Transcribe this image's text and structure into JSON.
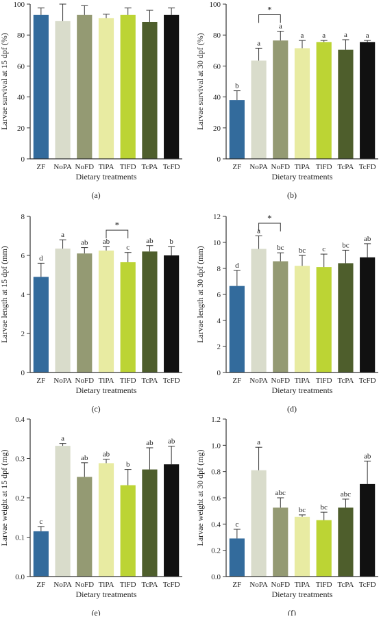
{
  "colors": {
    "ZF": "#336b9c",
    "NoPA": "#d9dccb",
    "NoFD": "#949a73",
    "TlPA": "#e8eba2",
    "TlFD": "#bcd434",
    "TcPA": "#4e5e2c",
    "TcFD": "#111111",
    "axis": "#333333"
  },
  "chart_data": [
    {
      "type": "bar",
      "panel_label": "(a)",
      "categories": [
        "ZF",
        "NoPA",
        "NoFD",
        "TlPA",
        "TlFD",
        "TcPA",
        "TcFD"
      ],
      "values": [
        93,
        89,
        93,
        91,
        93,
        88.5,
        93
      ],
      "errors": [
        4.5,
        11,
        6,
        2.5,
        4.5,
        7.5,
        4.5
      ],
      "letters": [
        "",
        "",
        "",
        "",
        "",
        "",
        ""
      ],
      "xlabel": "Dietary treatments",
      "ylabel": "Larvae survival at 15 dpf (%)",
      "ylim": [
        0,
        100
      ],
      "yticks": [
        "0",
        "20",
        "40",
        "60",
        "80",
        "100"
      ],
      "significance": null
    },
    {
      "type": "bar",
      "panel_label": "(b)",
      "categories": [
        "ZF",
        "NoPA",
        "NoFD",
        "TlPA",
        "TlFD",
        "TcPA",
        "TcFD"
      ],
      "values": [
        38,
        63.5,
        76.5,
        71.5,
        75.5,
        70.5,
        75.5
      ],
      "errors": [
        6,
        8,
        6,
        5,
        1,
        6.5,
        1
      ],
      "letters": [
        "b",
        "a",
        "a",
        "a",
        "a",
        "a",
        "a"
      ],
      "xlabel": "Dietary treatments",
      "ylabel": "Larvae survival at 30 dpf (%)",
      "ylim": [
        0,
        100
      ],
      "yticks": [
        "0",
        "20",
        "40",
        "60",
        "80",
        "100"
      ],
      "significance": {
        "from": 1,
        "to": 2,
        "label": "*"
      }
    },
    {
      "type": "bar",
      "panel_label": "(c)",
      "categories": [
        "ZF",
        "NoPA",
        "NoFD",
        "TlPA",
        "TlFD",
        "TcPA",
        "TcFD"
      ],
      "values": [
        4.9,
        6.35,
        6.1,
        6.25,
        5.65,
        6.2,
        6.0
      ],
      "errors": [
        0.7,
        0.45,
        0.3,
        0.2,
        0.5,
        0.3,
        0.45
      ],
      "letters": [
        "d",
        "a",
        "ab",
        "ab",
        "c",
        "ab",
        "b"
      ],
      "xlabel": "Dietary treatments",
      "ylabel": "Larvae length at 15 dpf (mm)",
      "ylim": [
        0,
        8
      ],
      "yticks": [
        "0",
        "2",
        "4",
        "6",
        "8"
      ],
      "significance": {
        "from": 3,
        "to": 4,
        "label": "*"
      }
    },
    {
      "type": "bar",
      "panel_label": "(d)",
      "categories": [
        "ZF",
        "NoPA",
        "NoFD",
        "TlPA",
        "TlFD",
        "TcPA",
        "TcFD"
      ],
      "values": [
        6.65,
        9.5,
        8.55,
        8.2,
        8.1,
        8.4,
        8.85
      ],
      "errors": [
        1.2,
        1.0,
        0.65,
        0.8,
        1.0,
        1.0,
        1.05
      ],
      "letters": [
        "d",
        "a",
        "bc",
        "bc",
        "c",
        "bc",
        "ab"
      ],
      "xlabel": "Dietary treatments",
      "ylabel": "Larvae length at 30 dpf (mm)",
      "ylim": [
        0,
        12
      ],
      "yticks": [
        "0",
        "2",
        "4",
        "6",
        "8",
        "10",
        "12"
      ],
      "significance": {
        "from": 1,
        "to": 2,
        "label": "*"
      }
    },
    {
      "type": "bar",
      "panel_label": "(e)",
      "categories": [
        "ZF",
        "NoPA",
        "NoFD",
        "TlPA",
        "TlFD",
        "TcPA",
        "TcFD"
      ],
      "values": [
        0.115,
        0.332,
        0.253,
        0.288,
        0.232,
        0.272,
        0.285
      ],
      "errors": [
        0.012,
        0.006,
        0.036,
        0.01,
        0.04,
        0.055,
        0.046
      ],
      "letters": [
        "c",
        "a",
        "ab",
        "ab",
        "b",
        "ab",
        "ab"
      ],
      "xlabel": "Dietary treatments",
      "ylabel": "Larvae weight at 15 dpf (mg)",
      "ylim": [
        0,
        0.4
      ],
      "yticks": [
        "0.0",
        "0.1",
        "0.2",
        "0.3",
        "0.4"
      ],
      "significance": null
    },
    {
      "type": "bar",
      "panel_label": "(f)",
      "categories": [
        "ZF",
        "NoPA",
        "NoFD",
        "TlPA",
        "TlFD",
        "TcPA",
        "TcFD"
      ],
      "values": [
        0.29,
        0.81,
        0.525,
        0.455,
        0.43,
        0.525,
        0.705
      ],
      "errors": [
        0.07,
        0.175,
        0.075,
        0.015,
        0.06,
        0.065,
        0.175
      ],
      "letters": [
        "c",
        "a",
        "abc",
        "bc",
        "bc",
        "abc",
        "ab"
      ],
      "xlabel": "Dietary treatments",
      "ylabel": "Larvae weight at 30 dpf (mg)",
      "ylim": [
        0,
        1.2
      ],
      "yticks": [
        "0.0",
        "0.2",
        "0.4",
        "0.6",
        "0.8",
        "1.0",
        "1.2"
      ],
      "significance": null
    }
  ]
}
